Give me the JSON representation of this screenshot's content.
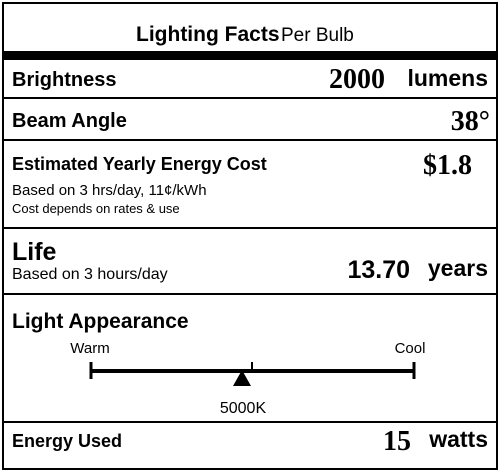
{
  "header": {
    "title": "Lighting Facts",
    "subtitle": "Per Bulb"
  },
  "brightness": {
    "label": "Brightness",
    "value": "2000",
    "unit": "lumens"
  },
  "beam_angle": {
    "label": "Beam Angle",
    "value": "38°"
  },
  "energy_cost": {
    "label": "Estimated Yearly Energy Cost",
    "value": "$1.8",
    "note1": "Based on 3 hrs/day, 11¢/kWh",
    "note2": "Cost depends on rates & use"
  },
  "life": {
    "label": "Life",
    "note": "Based on 3 hours/day",
    "value": "13.70",
    "unit": "years"
  },
  "light_appearance": {
    "label": "Light Appearance",
    "warm": "Warm",
    "cool": "Cool",
    "value": "5000K"
  },
  "energy_used": {
    "label": "Energy Used",
    "value": "15",
    "unit": "watts"
  }
}
